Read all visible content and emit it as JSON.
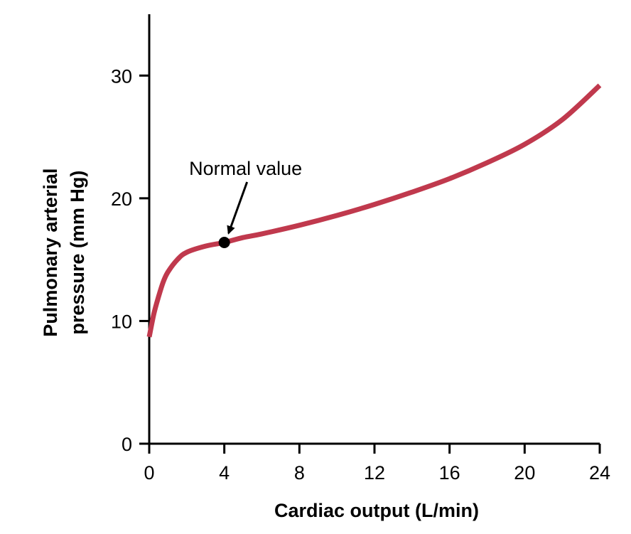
{
  "chart_data": {
    "type": "line",
    "title": "",
    "xlabel": "Cardiac output (L/min)",
    "ylabel_line1": "Pulmonary arterial",
    "ylabel_line2": "pressure (mm Hg)",
    "xlim": [
      0,
      24
    ],
    "ylim": [
      0,
      35
    ],
    "xticks": [
      0,
      4,
      8,
      12,
      16,
      20,
      24
    ],
    "yticks": [
      0,
      10,
      20,
      30
    ],
    "grid": false,
    "colors": {
      "line": "#c0394d",
      "axis": "#000000",
      "marker": "#000000"
    },
    "series": [
      {
        "name": "Pulmonary arterial pressure",
        "x": [
          0,
          0.25,
          0.5,
          0.75,
          1,
          1.5,
          2,
          3,
          4,
          5,
          6,
          8,
          10,
          12,
          14,
          16,
          18,
          20,
          22,
          24
        ],
        "y": [
          8.7,
          10.6,
          12.0,
          13.2,
          14.0,
          15.0,
          15.6,
          16.1,
          16.4,
          16.8,
          17.1,
          17.8,
          18.6,
          19.5,
          20.5,
          21.6,
          22.9,
          24.4,
          26.4,
          29.2
        ]
      }
    ],
    "annotations": [
      {
        "text": "Normal value",
        "x": 4,
        "y": 16.4
      }
    ]
  }
}
